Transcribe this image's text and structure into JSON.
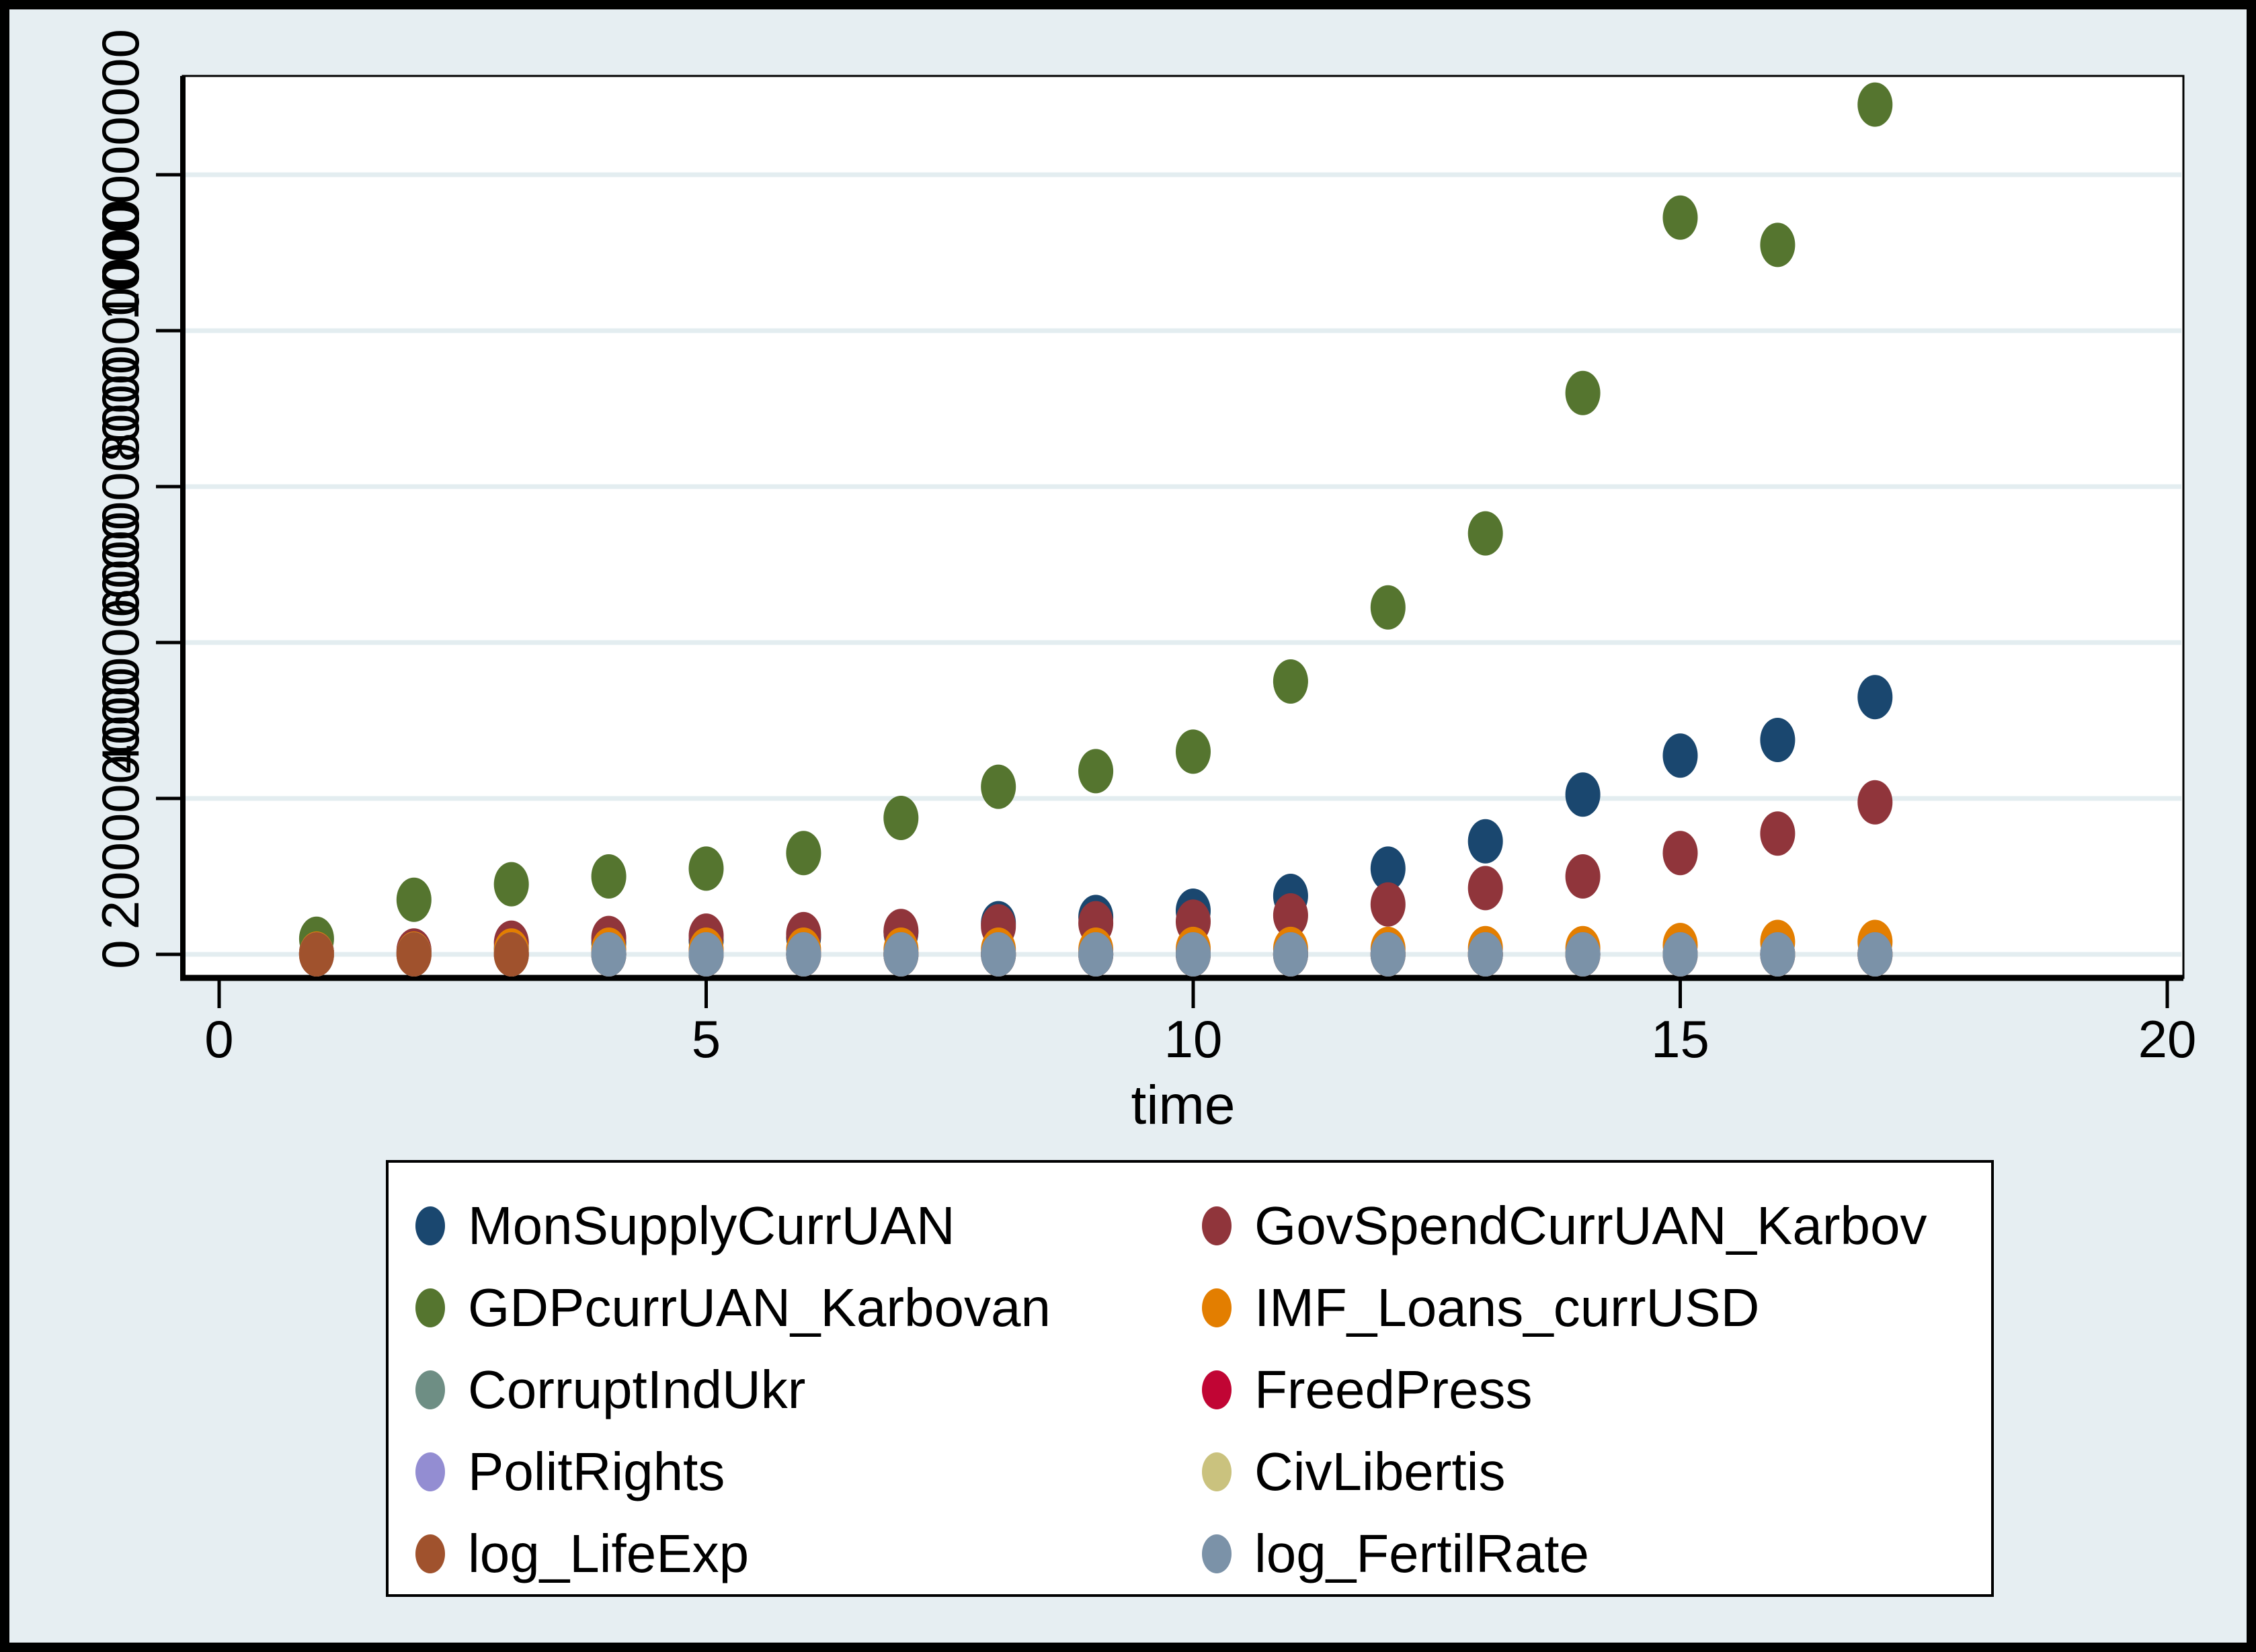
{
  "chart_data": {
    "type": "scatter",
    "title": "",
    "xlabel": "time",
    "x_ticks": [
      0,
      5,
      10,
      15,
      20
    ],
    "y_ticks": [
      {
        "value": 0,
        "label": "0"
      },
      {
        "value": 200000000,
        "label": "200000000"
      },
      {
        "value": 400000000,
        "label": "400000000"
      },
      {
        "value": 600000000,
        "label": "600000000"
      },
      {
        "value": 800000000,
        "label": "800000000"
      },
      {
        "value": 1000000000,
        "label": "1000000000"
      }
    ],
    "xlim": [
      -0.4,
      20.2
    ],
    "ylim": [
      0,
      1090000000
    ],
    "grid": true,
    "legend_position": "bottom",
    "legend_columns": 2,
    "x": [
      1,
      2,
      3,
      4,
      5,
      6,
      7,
      8,
      9,
      10,
      11,
      12,
      13,
      14,
      15,
      16,
      17
    ],
    "series": [
      {
        "name": "MonSupplyCurrUAN",
        "color": "#1a476f",
        "marker": "circle",
        "values": [
          2000000,
          4000000,
          8000000,
          15000000,
          18000000,
          22000000,
          28000000,
          40000000,
          48000000,
          56000000,
          75000000,
          110000000,
          145000000,
          205000000,
          255000000,
          275000000,
          330000000
        ]
      },
      {
        "name": "GovSpendCurrUAN_Karbov",
        "color": "#90353b",
        "marker": "circle",
        "values": [
          2000000,
          5000000,
          15000000,
          21000000,
          24000000,
          26000000,
          30000000,
          36000000,
          40000000,
          42000000,
          50000000,
          64000000,
          85000000,
          100000000,
          130000000,
          155000000,
          195000000
        ]
      },
      {
        "name": "GDPcurrUAN_Karbovan",
        "color": "#55752f",
        "marker": "circle",
        "values": [
          20000000,
          70000000,
          90000000,
          100000000,
          110000000,
          130000000,
          175000000,
          215000000,
          235000000,
          260000000,
          350000000,
          445000000,
          540000000,
          720000000,
          945000000,
          910000000,
          1090000000
        ]
      },
      {
        "name": "IMF_Loans_currUSD",
        "color": "#e37e00",
        "marker": "circle",
        "values": [
          1000000,
          1000000,
          5000000,
          6000000,
          6000000,
          6000000,
          6000000,
          6000000,
          6000000,
          7000000,
          7000000,
          7000000,
          8000000,
          8000000,
          12000000,
          16000000,
          16000000
        ]
      },
      {
        "name": "CorruptIndUkr",
        "color": "#6e8e84",
        "marker": "circle",
        "values": [
          2,
          2.2,
          2.3,
          2.1,
          2.0,
          1.5,
          2.1,
          2.2,
          2.4,
          2.6,
          1.5,
          2.3,
          2.4,
          2.2,
          2.6,
          2.7,
          2.5
        ]
      },
      {
        "name": "FreedPress",
        "color": "#c10534",
        "marker": "circle",
        "values": [
          4,
          4,
          4,
          4,
          4,
          4.5,
          4.5,
          4.5,
          5,
          5,
          4.5,
          4,
          4,
          3.5,
          3.5,
          3.5,
          3.5
        ]
      },
      {
        "name": "PolitRights",
        "color": "#938dd2",
        "marker": "circle",
        "values": [
          3,
          3,
          3,
          3,
          3,
          3,
          4,
          4,
          4,
          4,
          4,
          3,
          3,
          3,
          3,
          3,
          3
        ]
      },
      {
        "name": "CivLibertis",
        "color": "#cac27e",
        "marker": "circle",
        "values": [
          3,
          3,
          4,
          4,
          4,
          4,
          4,
          4,
          4,
          4,
          3.5,
          3.5,
          3.5,
          2.5,
          2.5,
          2.5,
          2.5
        ]
      },
      {
        "name": "log_LifeExp",
        "color": "#a0522d",
        "marker": "circle",
        "values": [
          4.24,
          4.23,
          4.23,
          4.22,
          4.22,
          4.22,
          4.22,
          4.22,
          4.22,
          4.22,
          4.23,
          4.23,
          4.23,
          4.23,
          4.23,
          4.24,
          4.24
        ]
      },
      {
        "name": "log_FertilRate",
        "color": "#7b92a8",
        "marker": "circle",
        "values": [
          null,
          null,
          null,
          0.44,
          0.38,
          0.31,
          0.26,
          0.22,
          0.18,
          0.14,
          0.1,
          0.08,
          0.1,
          0.15,
          0.18,
          0.22,
          0.29
        ]
      }
    ]
  },
  "colors": {
    "outer_frame": "#000000",
    "background": "#e6eef2",
    "plot_background": "#ffffff",
    "grid_line": "#e3edf0",
    "axis_line": "#000000",
    "text": "#000000",
    "legend_background": "#ffffff",
    "legend_border": "#000000"
  }
}
